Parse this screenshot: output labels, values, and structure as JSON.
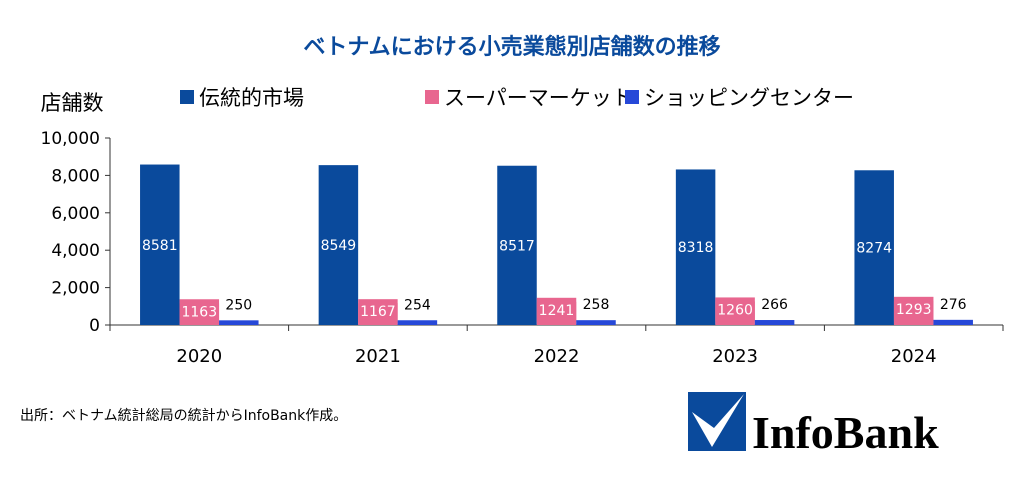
{
  "chart_data": {
    "type": "bar",
    "title": "ベトナムにおける小売業態別店舗数の推移",
    "ylabel": "店舗数",
    "xlabel": "",
    "categories": [
      "2020",
      "2021",
      "2022",
      "2023",
      "2024"
    ],
    "series": [
      {
        "name": "伝統的市場",
        "color": "#0a4a9c",
        "values": [
          8581,
          8549,
          8517,
          8318,
          8274
        ]
      },
      {
        "name": "スーパーマーケット",
        "color": "#e8668f",
        "values": [
          1163,
          1167,
          1241,
          1260,
          1293
        ]
      },
      {
        "name": "ショッピングセンター",
        "color": "#2648d8",
        "values": [
          250,
          254,
          258,
          266,
          276
        ]
      }
    ],
    "ylim": [
      0,
      10000
    ],
    "yticks": [
      "0",
      "2,000",
      "4,000",
      "6,000",
      "8,000",
      "10,000"
    ],
    "grid": false,
    "legend": "top"
  },
  "source": "出所：ベトナム統計総局の統計からInfoBank作成。",
  "logo": {
    "text": "InfoBank",
    "color": "#0a4a9c"
  }
}
